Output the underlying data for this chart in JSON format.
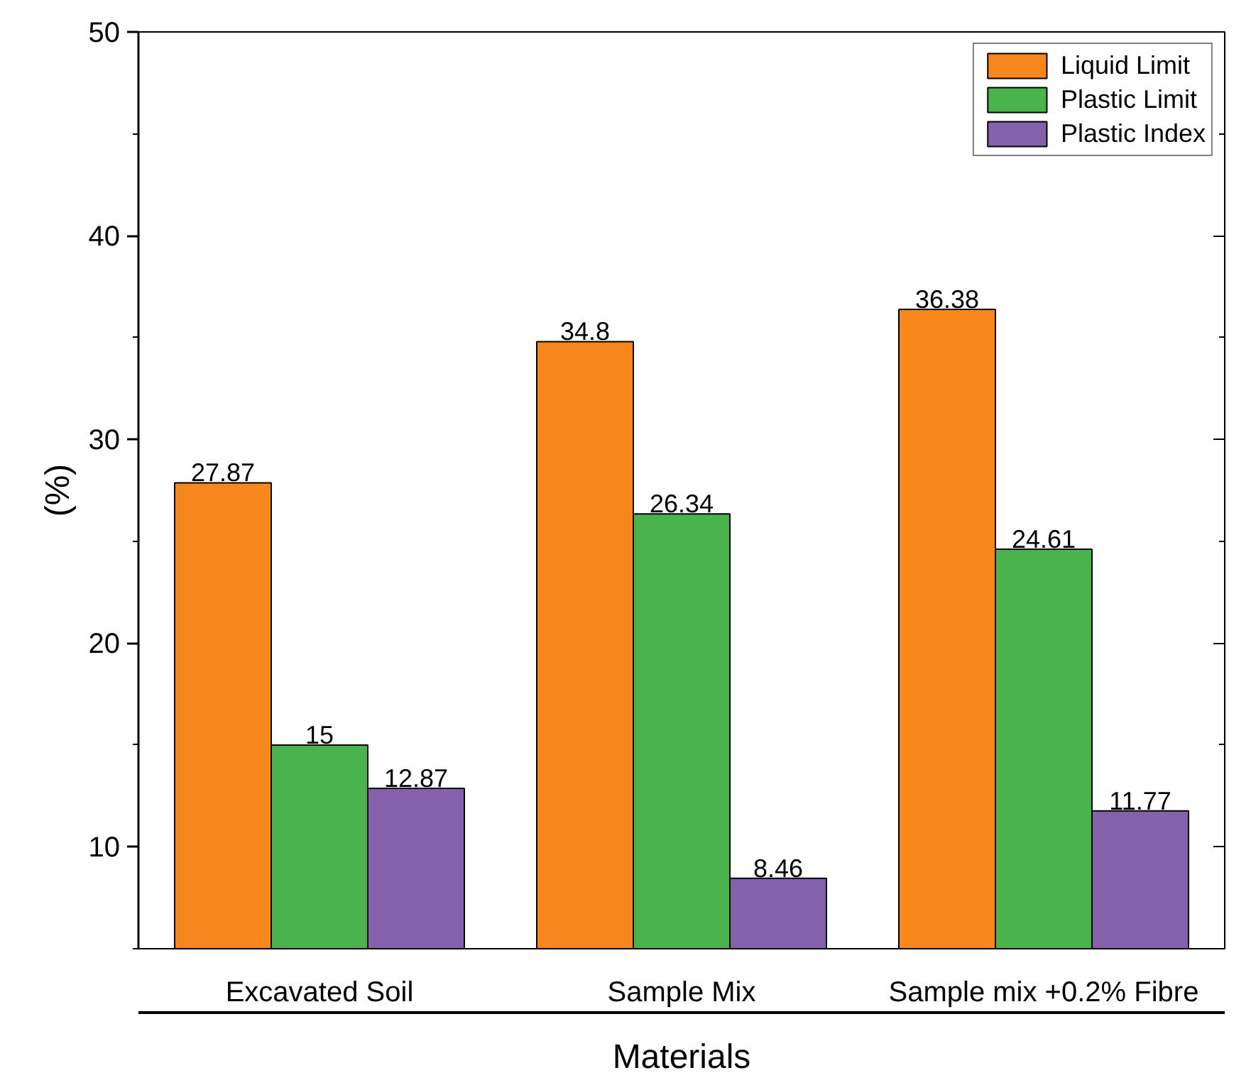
{
  "chart_data": {
    "type": "bar",
    "xlabel": "Materials",
    "ylabel": "(%)",
    "categories": [
      "Excavated Soil",
      "Sample Mix",
      "Sample mix +0.2% Fibre"
    ],
    "series": [
      {
        "name": "Liquid Limit",
        "color": "#f7861c",
        "values": [
          27.87,
          34.8,
          36.38
        ]
      },
      {
        "name": "Plastic Limit",
        "color": "#4bb34b",
        "values": [
          15,
          26.34,
          24.61
        ]
      },
      {
        "name": "Plastic Index",
        "color": "#8561ab",
        "values": [
          12.87,
          8.46,
          11.77
        ]
      }
    ],
    "ylim": [
      5,
      50
    ],
    "yticks": [
      10,
      20,
      30,
      40,
      50
    ],
    "data_labels": true,
    "legend": "top right",
    "grid": false
  }
}
